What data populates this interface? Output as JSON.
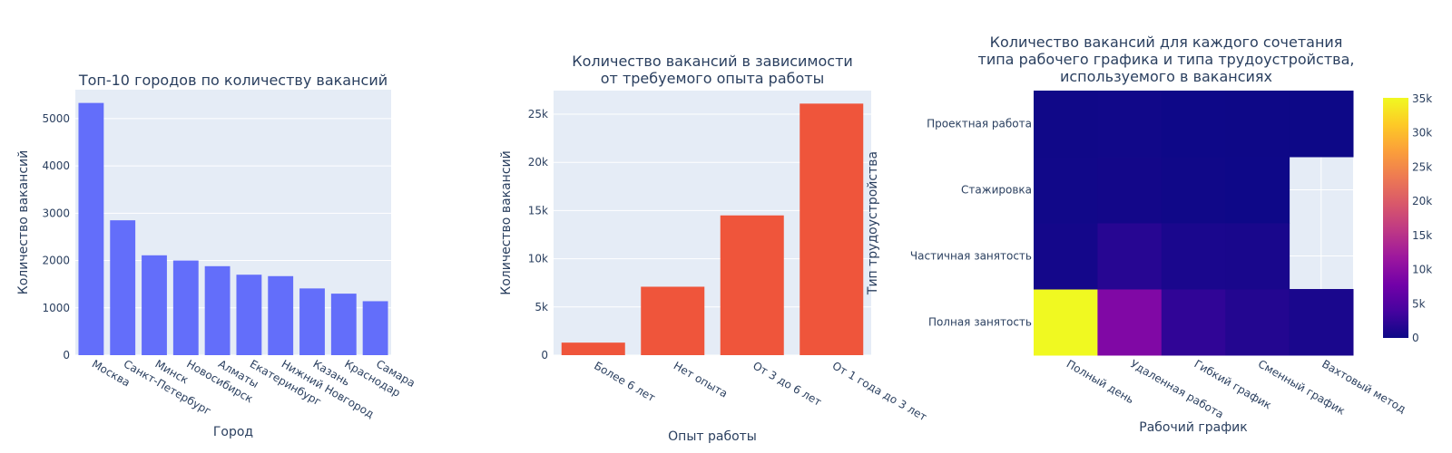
{
  "colors": {
    "plot_bg": "#e5ecf6",
    "grid": "#ffffff",
    "text": "#2a3f5f",
    "bar1": "#636efa",
    "bar2": "#ef553b",
    "colorscale": [
      "#0d0887",
      "#46039f",
      "#7201a8",
      "#9c179e",
      "#bd3786",
      "#d8576b",
      "#ed7953",
      "#fb9f3a",
      "#fdca26",
      "#f0f921"
    ]
  },
  "chart_data": [
    {
      "type": "bar",
      "title": "Топ-10 городов по количеству вакансий",
      "xlabel": "Город",
      "ylabel": "Количество вакансий",
      "categories": [
        "Москва",
        "Санкт-Петербург",
        "Минск",
        "Новосибирск",
        "Алматы",
        "Екатеринбург",
        "Нижний Новгород",
        "Казань",
        "Краснодар",
        "Самара"
      ],
      "values": [
        5330,
        2850,
        2110,
        2000,
        1880,
        1700,
        1670,
        1410,
        1300,
        1140
      ],
      "ylim": [
        0,
        5610
      ],
      "yticks": [
        0,
        1000,
        2000,
        3000,
        4000,
        5000
      ],
      "ytick_labels": [
        "0",
        "1000",
        "2000",
        "3000",
        "4000",
        "5000"
      ],
      "grid": true
    },
    {
      "type": "bar",
      "title_lines": [
        "Количество вакансий в зависимости",
        "от требуемого опыта работы"
      ],
      "xlabel": "Опыт работы",
      "ylabel": "Количество вакансий",
      "categories": [
        "Более 6 лет",
        "Нет опыта",
        "От 3 до 6 лет",
        "От 1 года до 3 лет"
      ],
      "values": [
        1300,
        7100,
        14500,
        26100
      ],
      "ylim": [
        0,
        27450
      ],
      "yticks": [
        0,
        5000,
        10000,
        15000,
        20000,
        25000
      ],
      "ytick_labels": [
        "0",
        "5k",
        "10k",
        "15k",
        "20k",
        "25k"
      ],
      "grid": true
    },
    {
      "type": "heatmap",
      "title_lines": [
        "Количество вакансий для каждого сочетания",
        "типа рабочего графика и типа трудоустройства,",
        "используемого в вакансиях"
      ],
      "xlabel": "Рабочий график",
      "ylabel": "Тип трудоустройства",
      "x": [
        "Полный день",
        "Удаленная работа",
        "Гибкий график",
        "Сменный график",
        "Вахтовый метод"
      ],
      "y": [
        "Полная занятость",
        "Частичная занятость",
        "Стажировка",
        "Проектная работа"
      ],
      "z": [
        [
          35100,
          9100,
          2400,
          1500,
          900
        ],
        [
          500,
          1800,
          900,
          800,
          null
        ],
        [
          300,
          400,
          200,
          100,
          null
        ],
        [
          200,
          300,
          100,
          50,
          20
        ]
      ],
      "zlim": [
        0,
        35100
      ],
      "colorbar_ticks": [
        0,
        5000,
        10000,
        15000,
        20000,
        25000,
        30000,
        35000
      ],
      "colorbar_labels": [
        "0",
        "5k",
        "10k",
        "15k",
        "20k",
        "25k",
        "30k",
        "35k"
      ]
    }
  ]
}
